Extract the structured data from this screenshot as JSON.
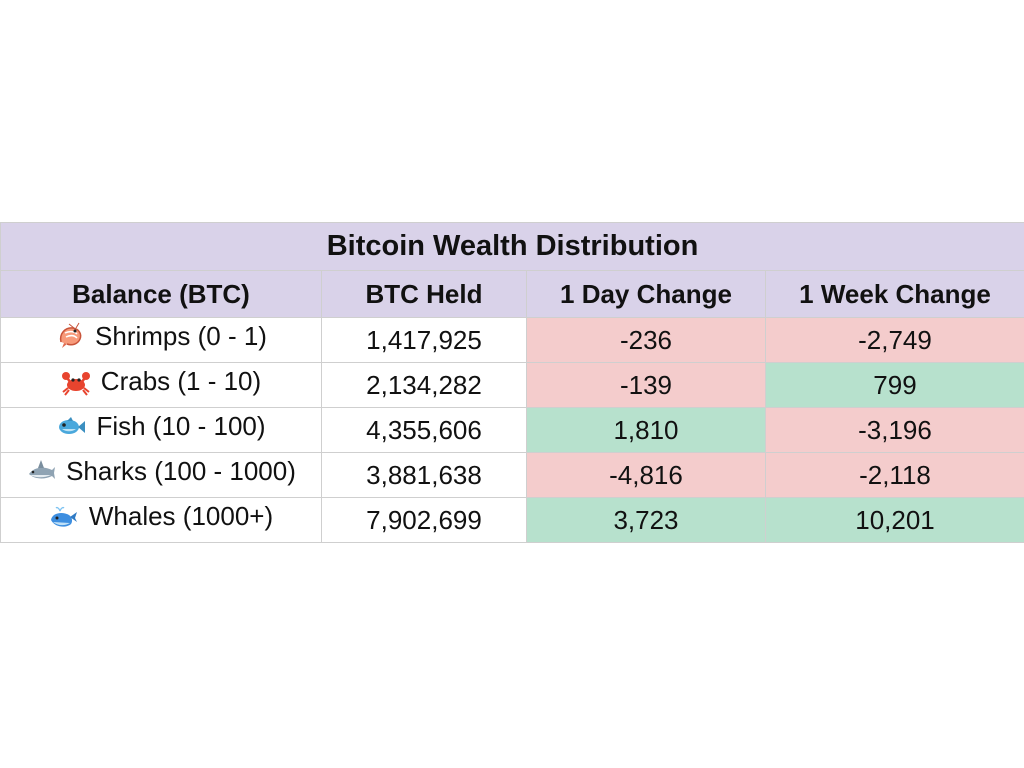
{
  "chart_data": {
    "type": "table",
    "title": "Bitcoin Wealth Distribution",
    "columns": [
      "Balance (BTC)",
      "BTC Held",
      "1 Day Change",
      "1 Week Change"
    ],
    "rows": [
      {
        "icon": "shrimp-icon",
        "label": "Shrimps (0 - 1)",
        "btc_held": "1,417,925",
        "day_change": "-236",
        "day_sign": "neg",
        "week_change": "-2,749",
        "week_sign": "neg"
      },
      {
        "icon": "crab-icon",
        "label": "Crabs (1 - 10)",
        "btc_held": "2,134,282",
        "day_change": "-139",
        "day_sign": "neg",
        "week_change": "799",
        "week_sign": "pos"
      },
      {
        "icon": "fish-icon",
        "label": "Fish (10 - 100)",
        "btc_held": "4,355,606",
        "day_change": "1,810",
        "day_sign": "pos",
        "week_change": "-3,196",
        "week_sign": "neg"
      },
      {
        "icon": "shark-icon",
        "label": "Sharks (100 - 1000)",
        "btc_held": "3,881,638",
        "day_change": "-4,816",
        "day_sign": "neg",
        "week_change": "-2,118",
        "week_sign": "neg"
      },
      {
        "icon": "whale-icon",
        "label": "Whales (1000+)",
        "btc_held": "7,902,699",
        "day_change": "3,723",
        "day_sign": "pos",
        "week_change": "10,201",
        "week_sign": "pos"
      }
    ]
  },
  "colors": {
    "header_bg": "#d9d2e9",
    "negative_bg": "#f4cccc",
    "positive_bg": "#b7e1cd",
    "border": "#cfcfcf"
  }
}
